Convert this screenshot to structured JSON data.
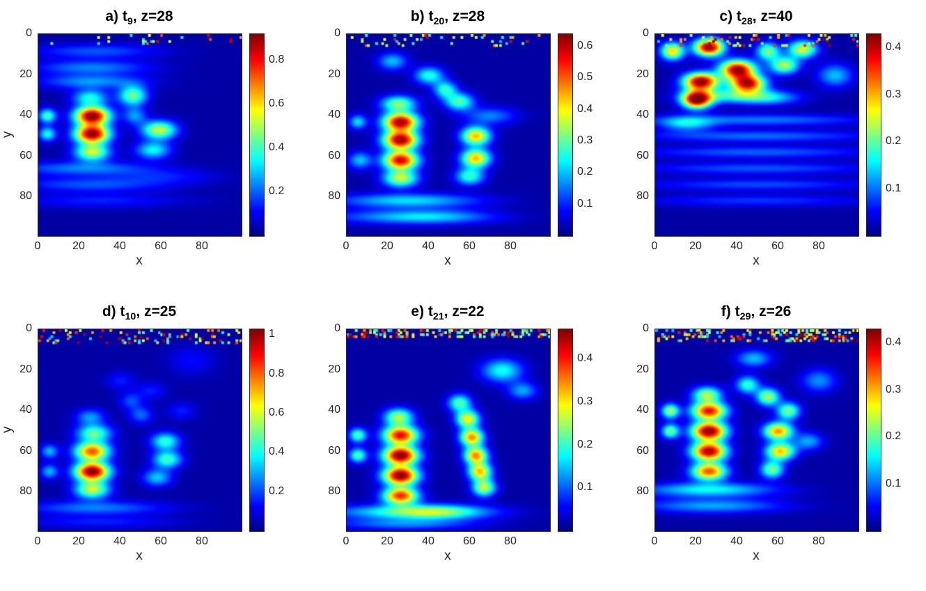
{
  "chart_data": {
    "type": "heatmap",
    "colormap": "jet",
    "grid_size": 100,
    "axis_max": 99,
    "base_fraction": 0.035,
    "panels": [
      {
        "label": "a",
        "title_prefix": "a) t",
        "title_sub": "9",
        "title_suffix": ", z=28",
        "xlabel": "x",
        "ylabel": "y",
        "x_ticks": [
          0,
          20,
          40,
          60,
          80
        ],
        "y_ticks": [
          0,
          20,
          40,
          60,
          80
        ],
        "cmax": 0.92,
        "cb_ticks": [
          0.2,
          0.4,
          0.6,
          0.8
        ],
        "noise": {
          "seed": 11,
          "rows": 5,
          "density": 0.05
        },
        "blobs": [
          [
            26,
            40,
            6,
            3.2,
            0.9
          ],
          [
            26,
            49,
            6,
            3.2,
            0.88
          ],
          [
            26,
            58,
            6,
            3,
            0.5
          ],
          [
            25,
            31,
            6,
            2.8,
            0.33
          ],
          [
            4,
            40,
            3,
            2.5,
            0.38
          ],
          [
            4,
            49,
            3,
            2.5,
            0.33
          ],
          [
            46,
            30,
            5,
            3.5,
            0.42
          ],
          [
            59,
            47,
            6,
            3.2,
            0.5
          ],
          [
            56,
            57,
            6,
            3,
            0.32
          ],
          [
            47,
            40,
            4,
            3,
            0.22
          ],
          [
            28,
            8,
            22,
            2.5,
            0.16
          ],
          [
            26,
            16,
            20,
            2.5,
            0.2
          ],
          [
            26,
            23,
            18,
            2.5,
            0.22
          ],
          [
            22,
            66,
            24,
            2.5,
            0.2
          ],
          [
            26,
            74,
            26,
            2.5,
            0.16
          ],
          [
            30,
            82,
            28,
            2.5,
            0.11
          ],
          [
            62,
            70,
            18,
            2.5,
            0.09
          ]
        ]
      },
      {
        "label": "b",
        "title_prefix": "b) t",
        "title_sub": "20",
        "title_suffix": ", z=28",
        "xlabel": "x",
        "ylabel": "",
        "x_ticks": [
          0,
          20,
          40,
          60,
          80
        ],
        "y_ticks": [
          0,
          20,
          40,
          60,
          80
        ],
        "cmax": 0.64,
        "cb_ticks": [
          0.1,
          0.2,
          0.3,
          0.4,
          0.5,
          0.6
        ],
        "noise": {
          "seed": 22,
          "rows": 6,
          "density": 0.08
        },
        "blobs": [
          [
            26,
            43,
            6,
            3.2,
            0.6
          ],
          [
            26,
            52,
            6,
            3.2,
            0.6
          ],
          [
            26,
            62,
            6,
            3.2,
            0.56
          ],
          [
            26,
            71,
            6,
            3,
            0.34
          ],
          [
            25,
            34,
            6,
            2.8,
            0.3
          ],
          [
            63,
            50,
            5,
            3.2,
            0.42
          ],
          [
            63,
            61,
            5,
            3.2,
            0.42
          ],
          [
            60,
            70,
            5,
            3,
            0.25
          ],
          [
            55,
            33,
            5,
            3,
            0.27
          ],
          [
            48,
            27,
            4,
            3,
            0.24
          ],
          [
            40,
            20,
            5,
            3,
            0.24
          ],
          [
            22,
            13,
            5,
            3,
            0.18
          ],
          [
            30,
            82,
            24,
            2.5,
            0.2
          ],
          [
            26,
            90,
            26,
            2.5,
            0.13
          ],
          [
            70,
            40,
            9,
            3,
            0.14
          ],
          [
            6,
            62,
            4,
            3,
            0.18
          ],
          [
            5,
            43,
            3,
            2.5,
            0.2
          ],
          [
            45,
            90,
            20,
            2.5,
            0.1
          ]
        ]
      },
      {
        "label": "c",
        "title_prefix": "c) t",
        "title_sub": "28",
        "title_suffix": ", z=40",
        "xlabel": "x",
        "ylabel": "",
        "x_ticks": [
          0,
          20,
          40,
          60,
          80
        ],
        "y_ticks": [
          0,
          20,
          40,
          60,
          80
        ],
        "cmax": 0.43,
        "cb_ticks": [
          0.1,
          0.2,
          0.3,
          0.4
        ],
        "noise": {
          "seed": 33,
          "rows": 6,
          "density": 0.12
        },
        "blobs": [
          [
            26,
            6,
            5,
            3,
            0.42
          ],
          [
            40,
            17,
            6,
            3.2,
            0.4
          ],
          [
            22,
            23,
            6,
            3,
            0.42
          ],
          [
            45,
            24,
            6,
            3,
            0.38
          ],
          [
            20,
            32,
            5,
            3,
            0.42
          ],
          [
            63,
            15,
            5,
            3,
            0.22
          ],
          [
            72,
            7,
            5,
            3,
            0.24
          ],
          [
            8,
            8,
            4,
            3,
            0.27
          ],
          [
            55,
            8,
            4,
            3,
            0.2
          ],
          [
            35,
            30,
            14,
            2.5,
            0.14
          ],
          [
            55,
            31,
            11,
            2.5,
            0.12
          ],
          [
            15,
            44,
            9,
            2.5,
            0.12
          ],
          [
            50,
            42,
            38,
            2,
            0.09
          ],
          [
            50,
            50,
            40,
            2,
            0.085
          ],
          [
            50,
            58,
            40,
            2,
            0.08
          ],
          [
            50,
            66,
            40,
            2,
            0.075
          ],
          [
            50,
            74,
            40,
            2,
            0.07
          ],
          [
            50,
            82,
            40,
            2,
            0.06
          ],
          [
            88,
            20,
            6,
            4,
            0.12
          ]
        ]
      },
      {
        "label": "d",
        "title_prefix": "d) t",
        "title_sub": "10",
        "title_suffix": ", z=25",
        "xlabel": "x",
        "ylabel": "y",
        "x_ticks": [
          0,
          20,
          40,
          60,
          80
        ],
        "y_ticks": [
          0,
          20,
          40,
          60,
          80
        ],
        "cmax": 1.03,
        "cb_ticks": [
          0.2,
          0.4,
          0.6,
          0.8,
          1
        ],
        "noise": {
          "seed": 44,
          "rows": 7,
          "density": 0.12
        },
        "blobs": [
          [
            26,
            60,
            6,
            3.2,
            0.78
          ],
          [
            26,
            70,
            6,
            3.2,
            1.0
          ],
          [
            26,
            79,
            6,
            3,
            0.55
          ],
          [
            27,
            51,
            6,
            3,
            0.45
          ],
          [
            25,
            43,
            5,
            2.8,
            0.25
          ],
          [
            62,
            55,
            5,
            3,
            0.4
          ],
          [
            63,
            64,
            5,
            3,
            0.42
          ],
          [
            58,
            73,
            5,
            3,
            0.3
          ],
          [
            50,
            42,
            4,
            3,
            0.2
          ],
          [
            45,
            35,
            4,
            3,
            0.17
          ],
          [
            28,
            88,
            24,
            2.5,
            0.22
          ],
          [
            30,
            95,
            26,
            2,
            0.12
          ],
          [
            5,
            60,
            3,
            2.5,
            0.28
          ],
          [
            5,
            70,
            3,
            2.5,
            0.28
          ],
          [
            40,
            25,
            5,
            3,
            0.12
          ],
          [
            55,
            30,
            5,
            3,
            0.12
          ],
          [
            70,
            40,
            5,
            3,
            0.12
          ],
          [
            75,
            15,
            8,
            5,
            0.1
          ]
        ]
      },
      {
        "label": "e",
        "title_prefix": "e) t",
        "title_sub": "21",
        "title_suffix": ", z=22",
        "xlabel": "x",
        "ylabel": "",
        "x_ticks": [
          0,
          20,
          40,
          60,
          80
        ],
        "y_ticks": [
          0,
          20,
          40,
          60,
          80
        ],
        "cmax": 0.47,
        "cb_ticks": [
          0.1,
          0.2,
          0.3,
          0.4
        ],
        "noise": {
          "seed": 55,
          "rows": 4,
          "density": 0.3
        },
        "blobs": [
          [
            26,
            52,
            6,
            3.2,
            0.4
          ],
          [
            26,
            62,
            6,
            3.2,
            0.46
          ],
          [
            26,
            72,
            6,
            3.2,
            0.46
          ],
          [
            26,
            82,
            6,
            3,
            0.38
          ],
          [
            25,
            43,
            5,
            3,
            0.24
          ],
          [
            59,
            44,
            4,
            3,
            0.28
          ],
          [
            61,
            53,
            4,
            3,
            0.33
          ],
          [
            63,
            62,
            4,
            3,
            0.33
          ],
          [
            65,
            70,
            4,
            3,
            0.3
          ],
          [
            67,
            78,
            4,
            3,
            0.25
          ],
          [
            55,
            36,
            4,
            3,
            0.2
          ],
          [
            76,
            20,
            7,
            4,
            0.17
          ],
          [
            86,
            30,
            5,
            3,
            0.12
          ],
          [
            30,
            90,
            26,
            2.5,
            0.17
          ],
          [
            28,
            96,
            24,
            2,
            0.1
          ],
          [
            5,
            52,
            3,
            2.5,
            0.2
          ],
          [
            5,
            62,
            3,
            2.5,
            0.2
          ],
          [
            45,
            90,
            15,
            2.5,
            0.12
          ]
        ]
      },
      {
        "label": "f",
        "title_prefix": "f) t",
        "title_sub": "29",
        "title_suffix": ", z=26",
        "xlabel": "x",
        "ylabel": "",
        "x_ticks": [
          0,
          20,
          40,
          60,
          80
        ],
        "y_ticks": [
          0,
          20,
          40,
          60,
          80
        ],
        "cmax": 0.43,
        "cb_ticks": [
          0.1,
          0.2,
          0.3,
          0.4
        ],
        "noise": {
          "seed": 66,
          "rows": 6,
          "density": 0.22
        },
        "blobs": [
          [
            26,
            40,
            6,
            3,
            0.36
          ],
          [
            26,
            50,
            6,
            3.2,
            0.42
          ],
          [
            26,
            60,
            6,
            3.2,
            0.4
          ],
          [
            26,
            70,
            6,
            3,
            0.33
          ],
          [
            25,
            32,
            5,
            2.8,
            0.22
          ],
          [
            60,
            50,
            5,
            3,
            0.3
          ],
          [
            61,
            60,
            5,
            3,
            0.28
          ],
          [
            57,
            69,
            4,
            3,
            0.2
          ],
          [
            55,
            33,
            4,
            3,
            0.22
          ],
          [
            45,
            27,
            4,
            3,
            0.17
          ],
          [
            65,
            40,
            4,
            3,
            0.2
          ],
          [
            26,
            79,
            22,
            2.5,
            0.15
          ],
          [
            28,
            87,
            24,
            2.5,
            0.11
          ],
          [
            7,
            40,
            3,
            2.5,
            0.22
          ],
          [
            7,
            50,
            3,
            2.5,
            0.2
          ],
          [
            48,
            14,
            6,
            3,
            0.12
          ],
          [
            75,
            55,
            5,
            3,
            0.11
          ],
          [
            80,
            25,
            6,
            4,
            0.1
          ]
        ]
      }
    ]
  }
}
